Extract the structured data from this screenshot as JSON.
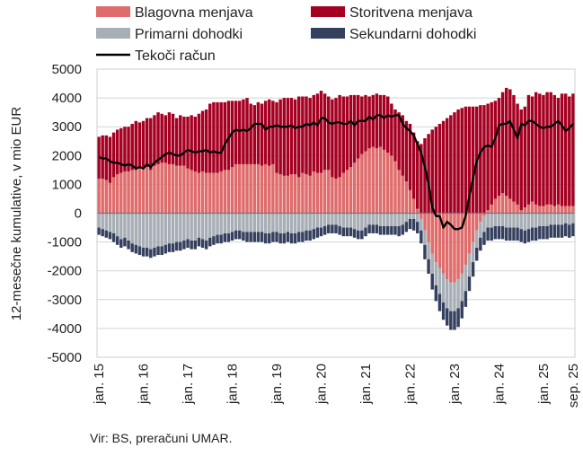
{
  "chart_data": {
    "type": "bar",
    "subtype": "stacked bar with line",
    "ylabel": "12-mesečne kumulative, v mio EUR",
    "ylim": [
      -5000,
      5000
    ],
    "yticks": [
      5000,
      4000,
      3000,
      2000,
      1000,
      0,
      -1000,
      -2000,
      -3000,
      -4000,
      -5000
    ],
    "x_start": "2015-01",
    "x_end": "2025-09",
    "xtick_labels": [
      "jan. 15",
      "jan. 16",
      "jan. 17",
      "jan. 18",
      "jan. 19",
      "jan. 20",
      "jan. 21",
      "jan. 22",
      "jan. 23",
      "jan. 24",
      "jan. 25",
      "sep. 25"
    ],
    "xtick_month_index": [
      0,
      12,
      24,
      36,
      48,
      60,
      72,
      84,
      96,
      108,
      120,
      128
    ],
    "grid": true,
    "legend_placement": "top",
    "source": "Vir: BS, preračuni UMAR.",
    "series": [
      {
        "name": "Blagovna menjava",
        "kind": "bar",
        "color": "#df6b6b",
        "values": [
          1200,
          1200,
          1150,
          1050,
          1250,
          1350,
          1400,
          1450,
          1450,
          1500,
          1500,
          1550,
          1550,
          1600,
          1500,
          1650,
          1700,
          1750,
          1750,
          1700,
          1700,
          1650,
          1650,
          1650,
          1550,
          1500,
          1450,
          1400,
          1450,
          1400,
          1400,
          1400,
          1400,
          1450,
          1500,
          1500,
          1600,
          1700,
          1700,
          1700,
          1700,
          1700,
          1700,
          1700,
          1650,
          1700,
          1650,
          1700,
          1400,
          1350,
          1300,
          1300,
          1350,
          1350,
          1250,
          1400,
          1350,
          1300,
          1450,
          1400,
          1400,
          1500,
          1500,
          1250,
          1200,
          1250,
          1400,
          1500,
          1600,
          1750,
          1900,
          2050,
          2150,
          2250,
          2300,
          2250,
          2300,
          2200,
          2100,
          2000,
          1800,
          1500,
          1300,
          1100,
          800,
          500,
          150,
          -200,
          -600,
          -1000,
          -1400,
          -1700,
          -1900,
          -2100,
          -2300,
          -2400,
          -2400,
          -2300,
          -2100,
          -1800,
          -1400,
          -1000,
          -600,
          -300,
          -100,
          100,
          300,
          500,
          600,
          700,
          600,
          500,
          400,
          300,
          100,
          200,
          300,
          400,
          300,
          250,
          250,
          300,
          300,
          250,
          300,
          250,
          250,
          250,
          250
        ]
      },
      {
        "name": "Storitvena menjava",
        "kind": "bar",
        "color": "#a50021",
        "values": [
          1450,
          1500,
          1550,
          1600,
          1550,
          1550,
          1550,
          1550,
          1550,
          1600,
          1700,
          1600,
          1650,
          1700,
          1800,
          1750,
          1800,
          1700,
          1650,
          1800,
          1750,
          1650,
          1750,
          1700,
          1800,
          1900,
          1900,
          2050,
          2100,
          2200,
          2400,
          2450,
          2450,
          2400,
          2350,
          2400,
          2300,
          2200,
          2200,
          2250,
          2300,
          2100,
          2050,
          2150,
          2150,
          2200,
          2300,
          2200,
          2450,
          2600,
          2700,
          2700,
          2650,
          2600,
          2800,
          2650,
          2700,
          2700,
          2650,
          2750,
          2850,
          2650,
          2550,
          2700,
          2800,
          2850,
          2650,
          2550,
          2500,
          2350,
          2200,
          2000,
          1950,
          1800,
          1800,
          1900,
          1800,
          1900,
          1950,
          1800,
          1800,
          2000,
          2100,
          2100,
          2300,
          2300,
          2350,
          2400,
          2600,
          2750,
          2900,
          3000,
          3100,
          3200,
          3300,
          3400,
          3500,
          3600,
          3650,
          3700,
          3700,
          3700,
          3700,
          3750,
          3750,
          3700,
          3550,
          3400,
          3400,
          3500,
          3750,
          3800,
          3700,
          3500,
          3500,
          3500,
          3800,
          3650,
          3900,
          3900,
          3850,
          3900,
          3900,
          3850,
          3700,
          3900,
          3900,
          3800,
          3900
        ]
      },
      {
        "name": "Primarni dohodki",
        "kind": "bar",
        "color": "#a8aeb5",
        "values": [
          -500,
          -550,
          -600,
          -650,
          -700,
          -800,
          -900,
          -850,
          -950,
          -1050,
          -1100,
          -1150,
          -1200,
          -1200,
          -1250,
          -1200,
          -1150,
          -1150,
          -1100,
          -1050,
          -1050,
          -1000,
          -1000,
          -950,
          -900,
          -950,
          -950,
          -850,
          -900,
          -950,
          -850,
          -800,
          -750,
          -750,
          -700,
          -700,
          -650,
          -600,
          -600,
          -650,
          -650,
          -650,
          -650,
          -650,
          -650,
          -700,
          -700,
          -650,
          -650,
          -700,
          -700,
          -650,
          -700,
          -700,
          -650,
          -650,
          -600,
          -600,
          -550,
          -500,
          -500,
          -450,
          -400,
          -400,
          -400,
          -450,
          -500,
          -500,
          -500,
          -550,
          -600,
          -600,
          -500,
          -400,
          -400,
          -400,
          -450,
          -450,
          -450,
          -450,
          -450,
          -450,
          -400,
          -300,
          -200,
          -200,
          -300,
          -400,
          -500,
          -600,
          -700,
          -800,
          -900,
          -1000,
          -1000,
          -1000,
          -1000,
          -1000,
          -950,
          -900,
          -800,
          -700,
          -600,
          -550,
          -550,
          -500,
          -500,
          -450,
          -450,
          -450,
          -500,
          -500,
          -500,
          -500,
          -550,
          -600,
          -550,
          -500,
          -500,
          -450,
          -450,
          -450,
          -400,
          -400,
          -400,
          -400,
          -350,
          -400,
          -350
        ]
      },
      {
        "name": "Sekundarni dohodki",
        "kind": "bar",
        "color": "#34405e",
        "values": [
          -250,
          -250,
          -250,
          -250,
          -300,
          -300,
          -300,
          -300,
          -300,
          -300,
          -300,
          -300,
          -300,
          -300,
          -300,
          -300,
          -300,
          -300,
          -300,
          -300,
          -300,
          -300,
          -300,
          -300,
          -300,
          -300,
          -300,
          -300,
          -300,
          -300,
          -300,
          -300,
          -300,
          -300,
          -300,
          -300,
          -300,
          -300,
          -300,
          -300,
          -350,
          -350,
          -350,
          -350,
          -350,
          -350,
          -350,
          -350,
          -350,
          -350,
          -350,
          -350,
          -350,
          -350,
          -350,
          -350,
          -350,
          -350,
          -350,
          -350,
          -300,
          -300,
          -300,
          -300,
          -300,
          -300,
          -300,
          -300,
          -300,
          -300,
          -300,
          -300,
          -300,
          -300,
          -300,
          -300,
          -300,
          -300,
          -300,
          -300,
          -300,
          -350,
          -350,
          -350,
          -350,
          -400,
          -400,
          -450,
          -500,
          -500,
          -550,
          -550,
          -600,
          -600,
          -600,
          -650,
          -650,
          -650,
          -600,
          -550,
          -500,
          -500,
          -450,
          -450,
          -450,
          -450,
          -450,
          -450,
          -450,
          -450,
          -450,
          -450,
          -450,
          -450,
          -450,
          -450,
          -450,
          -450,
          -450,
          -450,
          -450,
          -450,
          -450,
          -450,
          -450,
          -450,
          -450,
          -450,
          -450
        ]
      },
      {
        "name": "Tekoči račun",
        "kind": "line",
        "color": "#000000",
        "values": [
          1950,
          1900,
          1900,
          1800,
          1750,
          1750,
          1700,
          1650,
          1700,
          1650,
          1550,
          1600,
          1550,
          1700,
          1600,
          1750,
          1850,
          1950,
          2050,
          2100,
          2050,
          2000,
          2000,
          2100,
          2200,
          2150,
          2100,
          2150,
          2150,
          2200,
          2100,
          2150,
          2100,
          2100,
          2400,
          2600,
          2800,
          2900,
          2850,
          2900,
          2850,
          2950,
          3100,
          3100,
          3100,
          2900,
          3000,
          3000,
          3050,
          3000,
          3000,
          3000,
          3050,
          2950,
          3000,
          3000,
          3100,
          3050,
          3150,
          3050,
          3300,
          3300,
          3150,
          3100,
          3150,
          3150,
          3100,
          3100,
          3200,
          3050,
          3200,
          3200,
          3200,
          3350,
          3250,
          3400,
          3400,
          3300,
          3400,
          3350,
          3400,
          3400,
          3100,
          2950,
          2850,
          2700,
          2400,
          2100,
          1600,
          1000,
          200,
          -100,
          -100,
          -500,
          -300,
          -400,
          -550,
          -550,
          -500,
          -100,
          600,
          1200,
          1800,
          2100,
          2300,
          2350,
          2300,
          2600,
          3050,
          3100,
          3100,
          3200,
          2900,
          2600,
          3100,
          3050,
          3200,
          3200,
          3100,
          3000,
          2950,
          3000,
          3000,
          3100,
          3200,
          3050,
          2850,
          2950,
          3100
        ]
      }
    ]
  }
}
